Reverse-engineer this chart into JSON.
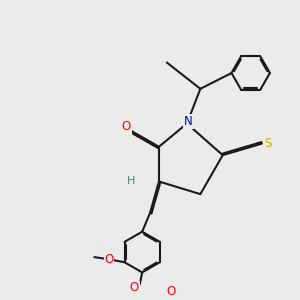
{
  "background_color": "#ebebeb",
  "bond_color": "#1a1a1a",
  "bond_width": 1.5,
  "atom_colors": {
    "O": "#ff0000",
    "N": "#0000cc",
    "S_yellow": "#b8b800",
    "H": "#3a8a7a",
    "C": "#1a1a1a"
  },
  "fig_width": 3.0,
  "fig_height": 3.0,
  "dpi": 100
}
